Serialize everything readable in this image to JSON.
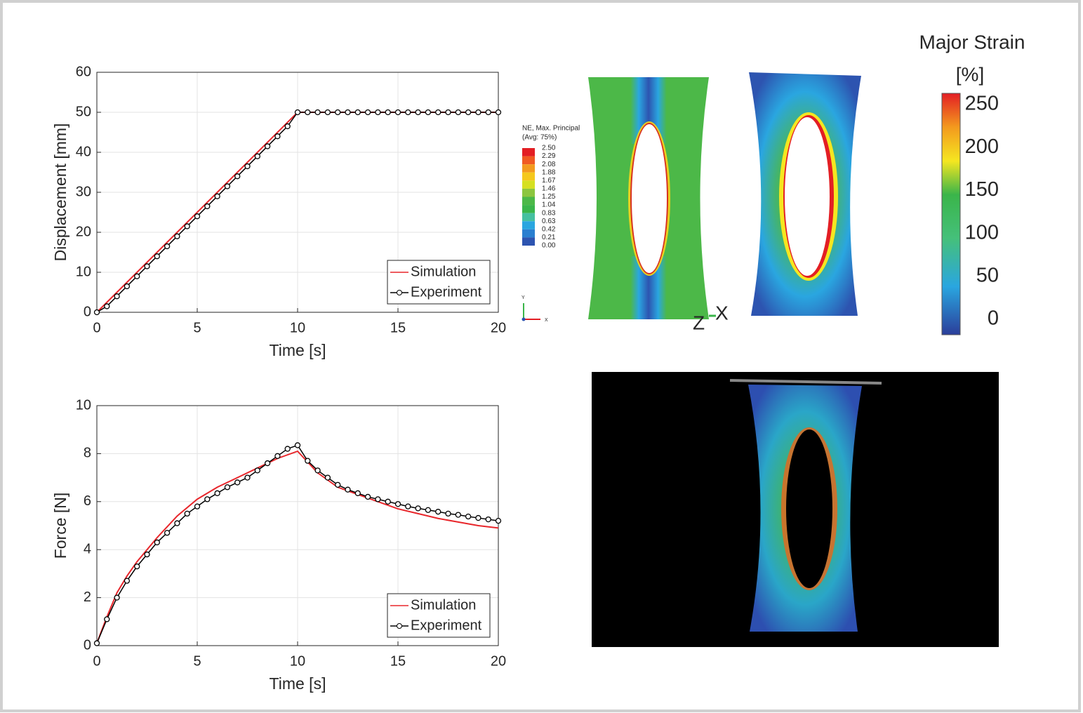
{
  "chart_data": [
    {
      "type": "line",
      "xlabel": "Time [s]",
      "ylabel": "Displacement [mm]",
      "xlim": [
        0,
        20
      ],
      "xticks": [
        0,
        5,
        10,
        15,
        20
      ],
      "ylim": [
        0,
        60
      ],
      "yticks": [
        0,
        10,
        20,
        30,
        40,
        50,
        60
      ],
      "grid": true,
      "legend": "lower right",
      "series": [
        {
          "name": "Simulation",
          "color": "#e8262b",
          "x": [
            0,
            10,
            20
          ],
          "values": [
            0,
            50,
            50
          ]
        },
        {
          "name": "Experiment",
          "color": "#000000",
          "marker": "o",
          "x": [
            0,
            0.5,
            1,
            1.5,
            2,
            2.5,
            3,
            3.5,
            4,
            4.5,
            5,
            5.5,
            6,
            6.5,
            7,
            7.5,
            8,
            8.5,
            9,
            9.5,
            10,
            10.5,
            11,
            11.5,
            12,
            12.5,
            13,
            13.5,
            14,
            14.5,
            15,
            15.5,
            16,
            16.5,
            17,
            17.5,
            18,
            18.5,
            19,
            19.5,
            20
          ],
          "values": [
            0,
            1.5,
            4,
            6.5,
            9,
            11.5,
            14,
            16.5,
            19,
            21.5,
            24,
            26.5,
            29,
            31.5,
            34,
            36.5,
            39,
            41.5,
            44,
            46.5,
            50,
            50,
            50,
            50,
            50,
            50,
            50,
            50,
            50,
            50,
            50,
            50,
            50,
            50,
            50,
            50,
            50,
            50,
            50,
            50,
            50
          ]
        }
      ]
    },
    {
      "type": "line",
      "xlabel": "Time [s]",
      "ylabel": "Force [N]",
      "xlim": [
        0,
        20
      ],
      "xticks": [
        0,
        5,
        10,
        15,
        20
      ],
      "ylim": [
        0,
        10
      ],
      "yticks": [
        0,
        2,
        4,
        6,
        8,
        10
      ],
      "grid": true,
      "legend": "lower right",
      "series": [
        {
          "name": "Simulation",
          "color": "#e8262b",
          "x": [
            0,
            0.5,
            1,
            1.5,
            2,
            3,
            4,
            5,
            6,
            7,
            8,
            9,
            10,
            11,
            12,
            13,
            14,
            15,
            16,
            17,
            18,
            19,
            20
          ],
          "values": [
            0.1,
            1.2,
            2.2,
            2.9,
            3.5,
            4.5,
            5.4,
            6.1,
            6.6,
            7.0,
            7.4,
            7.8,
            8.1,
            7.2,
            6.6,
            6.3,
            6.0,
            5.7,
            5.5,
            5.3,
            5.15,
            5.0,
            4.9
          ]
        },
        {
          "name": "Experiment",
          "color": "#000000",
          "marker": "o",
          "x": [
            0,
            0.5,
            1,
            1.5,
            2,
            2.5,
            3,
            3.5,
            4,
            4.5,
            5,
            5.5,
            6,
            6.5,
            7,
            7.5,
            8,
            8.5,
            9,
            9.5,
            10,
            10.5,
            11,
            11.5,
            12,
            12.5,
            13,
            13.5,
            14,
            14.5,
            15,
            15.5,
            16,
            16.5,
            17,
            17.5,
            18,
            18.5,
            19,
            19.5,
            20
          ],
          "values": [
            0.1,
            1.1,
            2.0,
            2.7,
            3.3,
            3.8,
            4.3,
            4.7,
            5.1,
            5.5,
            5.8,
            6.1,
            6.35,
            6.6,
            6.8,
            7.0,
            7.3,
            7.6,
            7.9,
            8.2,
            8.35,
            7.7,
            7.3,
            7.0,
            6.7,
            6.5,
            6.35,
            6.2,
            6.1,
            6.0,
            5.9,
            5.8,
            5.72,
            5.65,
            5.58,
            5.5,
            5.45,
            5.38,
            5.32,
            5.26,
            5.2
          ]
        }
      ]
    }
  ],
  "contour_legends": {
    "fe": {
      "title": "NE, Max. Principal",
      "subtitle": "(Avg: 75%)",
      "labels": [
        "2.50",
        "2.29",
        "2.08",
        "1.88",
        "1.67",
        "1.46",
        "1.25",
        "1.04",
        "0.83",
        "0.63",
        "0.42",
        "0.21",
        "0.00"
      ],
      "triad": [
        "Y",
        "X"
      ]
    },
    "dic": {
      "title": "Major Strain",
      "unit": "[%]",
      "labels": [
        250,
        200,
        150,
        100,
        50,
        0
      ]
    },
    "axes": [
      "Z",
      "X"
    ]
  }
}
